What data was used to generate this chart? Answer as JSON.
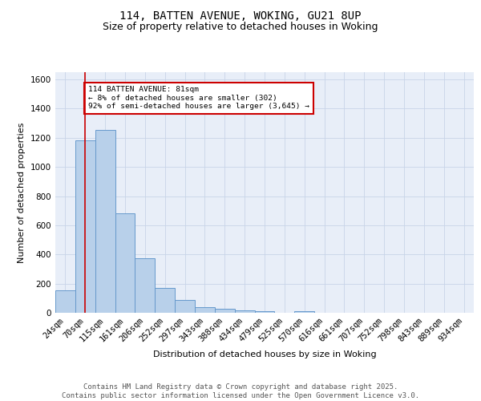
{
  "title_line1": "114, BATTEN AVENUE, WOKING, GU21 8UP",
  "title_line2": "Size of property relative to detached houses in Woking",
  "xlabel": "Distribution of detached houses by size in Woking",
  "ylabel": "Number of detached properties",
  "bin_labels": [
    "24sqm",
    "70sqm",
    "115sqm",
    "161sqm",
    "206sqm",
    "252sqm",
    "297sqm",
    "343sqm",
    "388sqm",
    "434sqm",
    "479sqm",
    "525sqm",
    "570sqm",
    "616sqm",
    "661sqm",
    "707sqm",
    "752sqm",
    "798sqm",
    "843sqm",
    "889sqm",
    "934sqm"
  ],
  "bar_heights": [
    155,
    1185,
    1255,
    680,
    375,
    170,
    90,
    38,
    28,
    18,
    12,
    0,
    10,
    0,
    0,
    0,
    0,
    0,
    0,
    0,
    0
  ],
  "bar_color": "#b8d0ea",
  "bar_edge_color": "#6699cc",
  "property_line_x": 1.0,
  "annotation_text": "114 BATTEN AVENUE: 81sqm\n← 8% of detached houses are smaller (302)\n92% of semi-detached houses are larger (3,645) →",
  "annotation_box_color": "#ffffff",
  "annotation_box_edge_color": "#cc0000",
  "red_line_color": "#cc0000",
  "ylim": [
    0,
    1650
  ],
  "yticks": [
    0,
    200,
    400,
    600,
    800,
    1000,
    1200,
    1400,
    1600
  ],
  "grid_color": "#c8d4e8",
  "background_color": "#e8eef8",
  "footer_text": "Contains HM Land Registry data © Crown copyright and database right 2025.\nContains public sector information licensed under the Open Government Licence v3.0.",
  "title_fontsize": 10,
  "subtitle_fontsize": 9,
  "axis_label_fontsize": 8,
  "tick_fontsize": 7.5,
  "footer_fontsize": 6.5
}
